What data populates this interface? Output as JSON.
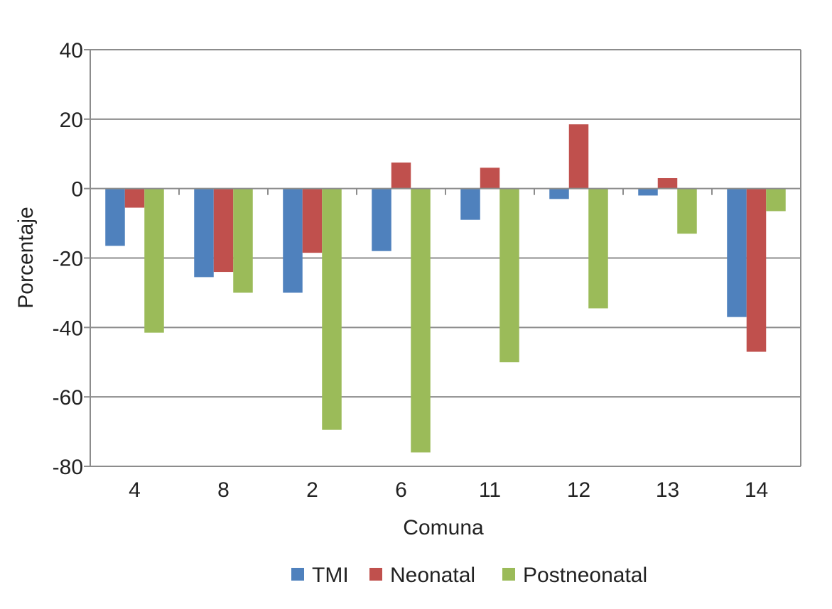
{
  "chart_data": {
    "type": "bar",
    "title": "",
    "xlabel": "Comuna",
    "ylabel": "Porcentaje",
    "ylim": [
      -80,
      40
    ],
    "yticks": [
      -80,
      -60,
      -40,
      -20,
      0,
      20,
      40
    ],
    "grid": true,
    "legend_position": "bottom",
    "categories": [
      "4",
      "8",
      "2",
      "6",
      "11",
      "12",
      "13",
      "14"
    ],
    "series": [
      {
        "name": "TMI",
        "color": "#4f81bd",
        "values": [
          -16.5,
          -25.5,
          -30,
          -18,
          -9,
          -3,
          -2,
          -37
        ]
      },
      {
        "name": "Neonatal",
        "color": "#c0504d",
        "values": [
          -5.5,
          -24,
          -18.5,
          7.5,
          6,
          18.5,
          3,
          -47
        ]
      },
      {
        "name": "Postneonatal",
        "color": "#9bbb59",
        "values": [
          -41.5,
          -30,
          -69.5,
          -76,
          -50,
          -34.5,
          -13,
          -6.5
        ]
      }
    ]
  }
}
